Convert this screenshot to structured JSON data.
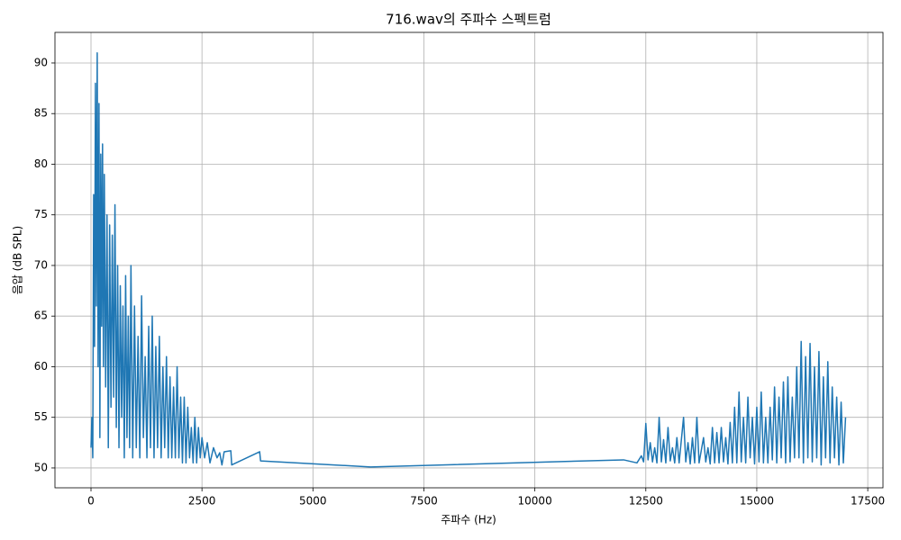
{
  "chart_data": {
    "type": "line",
    "title": "716.wav의 주파수 스펙트럼",
    "x_label": "주파수 (Hz)",
    "y_label": "음압 (dB SPL)",
    "xlim": [
      -812,
      17843
    ],
    "ylim": [
      48.04,
      93.02
    ],
    "xticks": [
      0,
      2500,
      5000,
      7500,
      10000,
      12500,
      15000,
      17500
    ],
    "yticks": [
      50,
      55,
      60,
      65,
      70,
      75,
      80,
      85,
      90
    ],
    "grid": true,
    "x": [
      0,
      20,
      40,
      60,
      80,
      100,
      120,
      140,
      160,
      180,
      200,
      220,
      240,
      260,
      280,
      300,
      330,
      360,
      390,
      420,
      450,
      480,
      510,
      540,
      570,
      600,
      630,
      660,
      690,
      720,
      750,
      780,
      810,
      840,
      870,
      900,
      940,
      980,
      1020,
      1060,
      1100,
      1140,
      1180,
      1220,
      1260,
      1300,
      1340,
      1380,
      1420,
      1460,
      1500,
      1540,
      1580,
      1620,
      1660,
      1700,
      1740,
      1780,
      1820,
      1860,
      1900,
      1940,
      1980,
      2020,
      2060,
      2100,
      2140,
      2180,
      2220,
      2260,
      2300,
      2340,
      2380,
      2420,
      2460,
      2500,
      2560,
      2620,
      2680,
      2760,
      2840,
      2900,
      2950,
      3000,
      3150,
      3170,
      3800,
      3820,
      6300,
      12000,
      12300,
      12400,
      12450,
      12500,
      12550,
      12600,
      12650,
      12700,
      12750,
      12800,
      12850,
      12900,
      12950,
      13000,
      13050,
      13100,
      13150,
      13200,
      13250,
      13350,
      13400,
      13450,
      13500,
      13550,
      13600,
      13650,
      13700,
      13800,
      13850,
      13900,
      13950,
      14000,
      14050,
      14100,
      14150,
      14200,
      14250,
      14300,
      14350,
      14400,
      14450,
      14500,
      14550,
      14600,
      14650,
      14700,
      14750,
      14800,
      14850,
      14900,
      14950,
      15000,
      15050,
      15100,
      15150,
      15200,
      15250,
      15300,
      15350,
      15400,
      15450,
      15500,
      15550,
      15600,
      15650,
      15700,
      15750,
      15800,
      15850,
      15900,
      15950,
      16000,
      16050,
      16100,
      16150,
      16200,
      16250,
      16300,
      16350,
      16400,
      16450,
      16500,
      16550,
      16600,
      16650,
      16700,
      16750,
      16800,
      16850,
      16900,
      16950,
      17000
    ],
    "series": [
      {
        "color": "#1f77b4",
        "values": [
          52,
          55,
          51,
          77,
          62,
          88,
          66,
          91,
          60,
          86,
          53,
          81,
          64,
          82,
          60,
          79,
          58,
          75,
          52,
          74,
          56,
          73,
          57,
          76,
          54,
          70,
          52,
          68,
          55,
          66,
          51,
          69,
          53,
          65,
          52,
          70,
          51,
          66,
          52,
          63,
          51,
          67,
          53,
          61,
          51,
          64,
          52,
          65,
          51,
          62,
          52,
          63,
          51,
          60,
          52,
          61,
          51,
          59,
          51,
          58,
          51,
          60,
          51,
          57,
          50.5,
          57,
          50.5,
          56,
          51,
          54,
          50.5,
          55,
          50.5,
          54,
          51,
          53,
          51,
          52.5,
          50.5,
          52,
          51,
          51.5,
          50.3,
          51.6,
          51.7,
          50.3,
          51.6,
          50.7,
          50.1,
          50.8,
          50.5,
          51.2,
          50.6,
          54.4,
          50.8,
          52.5,
          50.6,
          52,
          50.5,
          55,
          50.6,
          52.8,
          50.5,
          54,
          50.7,
          52,
          50.5,
          53,
          50.5,
          55,
          50.6,
          52.5,
          50.4,
          53,
          50.5,
          55,
          50.5,
          53,
          50.6,
          52,
          50.4,
          54,
          50.5,
          53.5,
          50.5,
          54,
          50.6,
          53,
          50.4,
          54.5,
          50.5,
          56,
          50.5,
          57.5,
          50.6,
          55,
          50.5,
          57,
          51,
          55,
          50.4,
          56,
          50.6,
          57.5,
          50.5,
          55,
          50.5,
          56,
          50.8,
          58,
          50.5,
          57,
          51,
          58.5,
          50.5,
          59,
          50.6,
          57,
          51,
          60,
          51,
          62.5,
          50.5,
          61,
          51,
          62.3,
          50.6,
          60,
          51,
          61.5,
          50.3,
          59,
          51,
          60.5,
          50.5,
          58,
          51,
          57,
          50.3,
          56.5,
          50.5,
          55
        ]
      }
    ]
  }
}
